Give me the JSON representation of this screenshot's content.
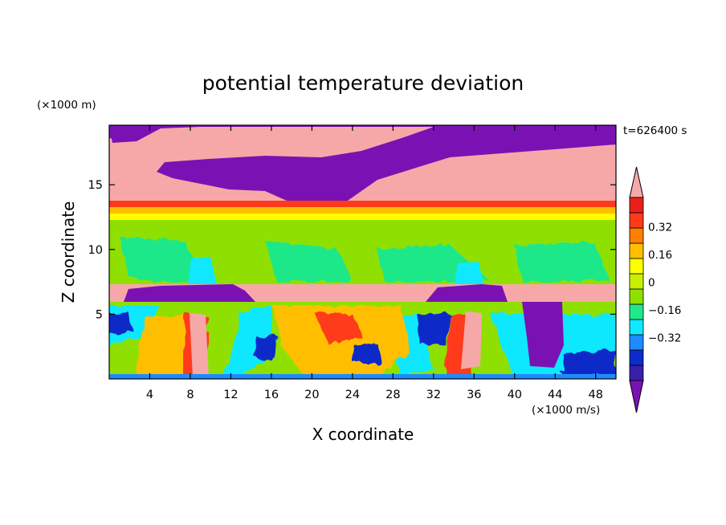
{
  "chart_data": {
    "type": "heatmap",
    "title": "potential temperature deviation",
    "xlabel": "X coordinate",
    "ylabel": "Z coordinate",
    "x_unit": "(×1000 m/s)",
    "y_unit": "(×1000 m)",
    "time_label": "t=626400 s",
    "xlim": [
      0,
      50
    ],
    "ylim": [
      0,
      19.6
    ],
    "x_ticks": [
      4,
      8,
      12,
      16,
      20,
      24,
      28,
      32,
      36,
      40,
      44,
      48
    ],
    "y_ticks": [
      5,
      10,
      15
    ],
    "colorbar": {
      "levels": [
        -0.48,
        -0.4,
        -0.32,
        -0.24,
        -0.16,
        -0.08,
        0,
        0.08,
        0.16,
        0.24,
        0.32,
        0.4
      ],
      "tick_labels": [
        "0.32",
        "0.16",
        "0",
        "−0.16",
        "−0.32"
      ],
      "tick_values": [
        0.32,
        0.16,
        0,
        -0.16,
        -0.32
      ],
      "colors": [
        "#7a12b3",
        "#3a1fa8",
        "#0d2cc9",
        "#1e8cff",
        "#10e8ff",
        "#1fe88a",
        "#8fe000",
        "#c8f000",
        "#ffff00",
        "#ffbf00",
        "#ff8000",
        "#ff3a1a",
        "#e8201c",
        "#f6a8a8"
      ],
      "extend": "both"
    }
  }
}
